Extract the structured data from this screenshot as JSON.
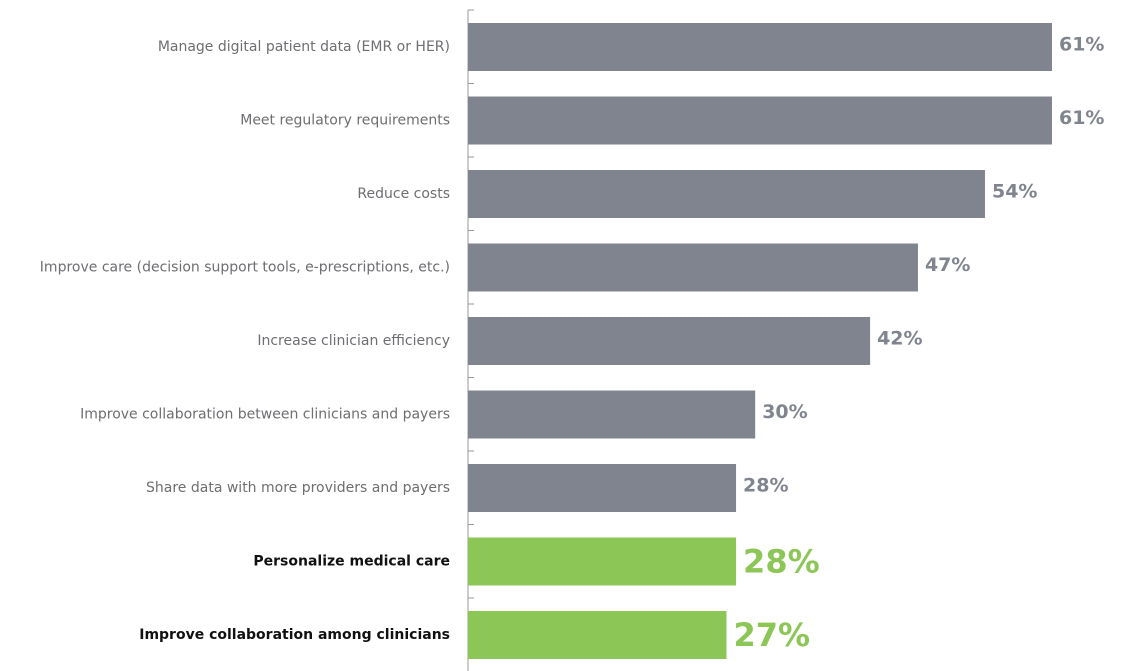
{
  "chart_data": {
    "type": "barh",
    "categories": [
      "Manage digital patient data (EMR or HER)",
      "Meet regulatory requirements",
      "Reduce costs",
      "Improve care (decision support tools, e-prescriptions, etc.)",
      "Increase clinician efficiency",
      "Improve collaboration between clinicians and payers",
      "Share data with more providers and payers",
      "Personalize medical care",
      "Improve collaboration among clinicians"
    ],
    "values": [
      61,
      61,
      54,
      47,
      42,
      30,
      28,
      28,
      27
    ],
    "value_labels": [
      "61%",
      "61%",
      "54%",
      "47%",
      "42%",
      "30%",
      "28%",
      "28%",
      "27%"
    ],
    "colors": [
      "#80848e",
      "#80848e",
      "#80848e",
      "#80848e",
      "#80848e",
      "#80848e",
      "#80848e",
      "#8cc657",
      "#8cc657"
    ],
    "highlight": [
      false,
      false,
      false,
      false,
      false,
      false,
      false,
      true,
      true
    ],
    "xlim": [
      0,
      68
    ]
  }
}
